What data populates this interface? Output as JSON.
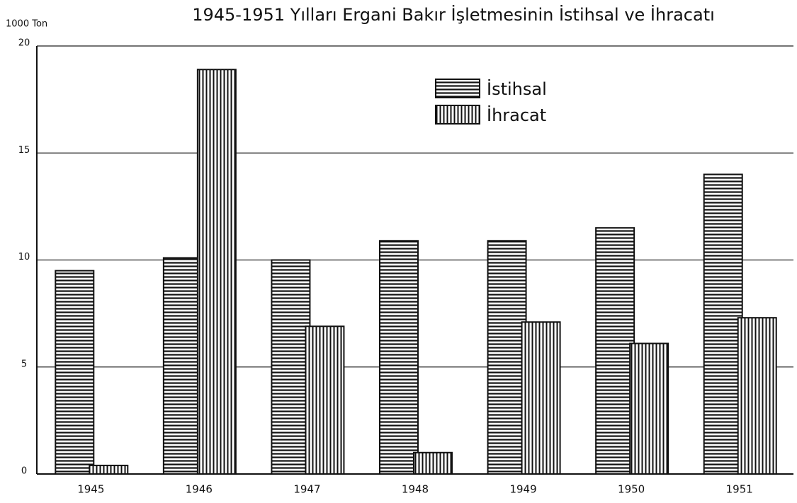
{
  "chart_data": {
    "type": "bar",
    "title": "1945-1951 Yılları Ergani Bakır İşletmesinin İstihsal ve İhracatı",
    "y_label": "1000 Ton",
    "categories": [
      "1945",
      "1946",
      "1947",
      "1948",
      "1949",
      "1950",
      "1951"
    ],
    "series": [
      {
        "name": "İstihsal",
        "color": "#111111",
        "values": [
          9.5,
          10.1,
          10.0,
          10.9,
          10.9,
          11.5,
          14.0
        ]
      },
      {
        "name": "İhracat",
        "color": "#111111",
        "values": [
          0.4,
          18.9,
          6.9,
          1.0,
          7.1,
          6.1,
          7.3
        ]
      }
    ],
    "ylim": [
      0,
      20
    ],
    "yticks": [
      0,
      5,
      10,
      15,
      20
    ],
    "grid": true,
    "legend": "top-right"
  }
}
